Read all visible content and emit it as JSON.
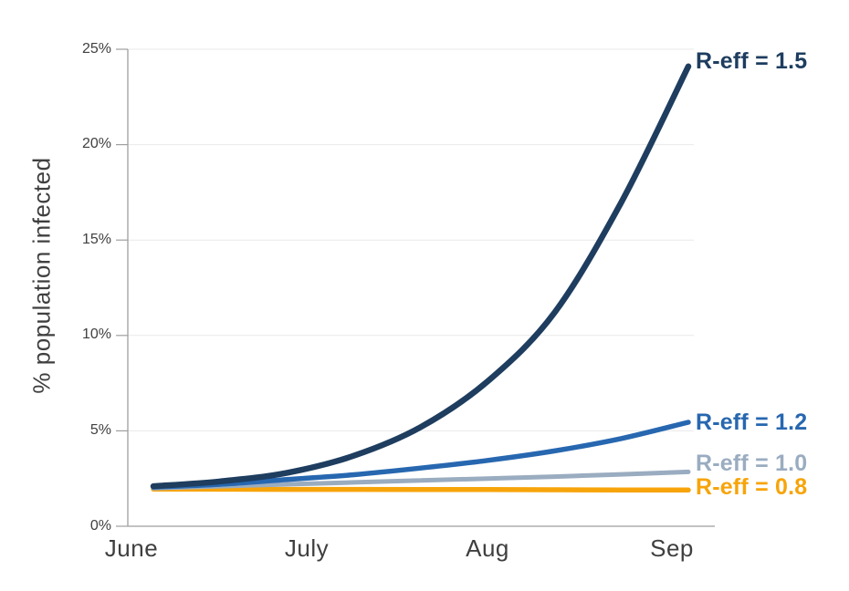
{
  "chart_data": {
    "type": "line",
    "title": "",
    "ylabel": "% population infected",
    "xlabel": "",
    "categories": [
      "June",
      "July",
      "Aug",
      "Sep"
    ],
    "y_ticks": [
      0,
      5,
      10,
      15,
      20,
      25
    ],
    "y_tick_labels": [
      "0%",
      "5%",
      "10%",
      "15%",
      "20%",
      "25%"
    ],
    "ylim": [
      0,
      25
    ],
    "grid": "horizontal-light",
    "legend_position": "end-of-line-labels-right",
    "x_months": [
      0.13,
      0.5,
      0.87,
      1.24,
      1.61,
      1.99,
      2.36,
      2.73,
      3.1
    ],
    "series": [
      {
        "name": "R-eff = 1.5",
        "label": "R-eff = 1.5",
        "color": "#1e3d5f",
        "values_pct": [
          2.1,
          2.35,
          2.8,
          3.7,
          5.2,
          7.6,
          11.2,
          17.0,
          24.1
        ]
      },
      {
        "name": "R-eff = 1.2",
        "label": "R-eff = 1.2",
        "color": "#2767b0",
        "values_pct": [
          2.05,
          2.2,
          2.45,
          2.7,
          3.05,
          3.45,
          3.95,
          4.6,
          5.45
        ]
      },
      {
        "name": "R-eff = 1.0",
        "label": "R-eff = 1.0",
        "color": "#9aacc0",
        "values_pct": [
          2.0,
          2.1,
          2.2,
          2.3,
          2.4,
          2.5,
          2.6,
          2.72,
          2.85
        ]
      },
      {
        "name": "R-eff = 0.8",
        "label": "R-eff = 0.8",
        "color": "#f7a40a",
        "values_pct": [
          1.95,
          1.94,
          1.93,
          1.93,
          1.92,
          1.92,
          1.91,
          1.9,
          1.9
        ]
      }
    ],
    "colors": {
      "grid": "#e9e9e9",
      "axis": "#9e9e9e",
      "tick_text": "#404040"
    }
  }
}
